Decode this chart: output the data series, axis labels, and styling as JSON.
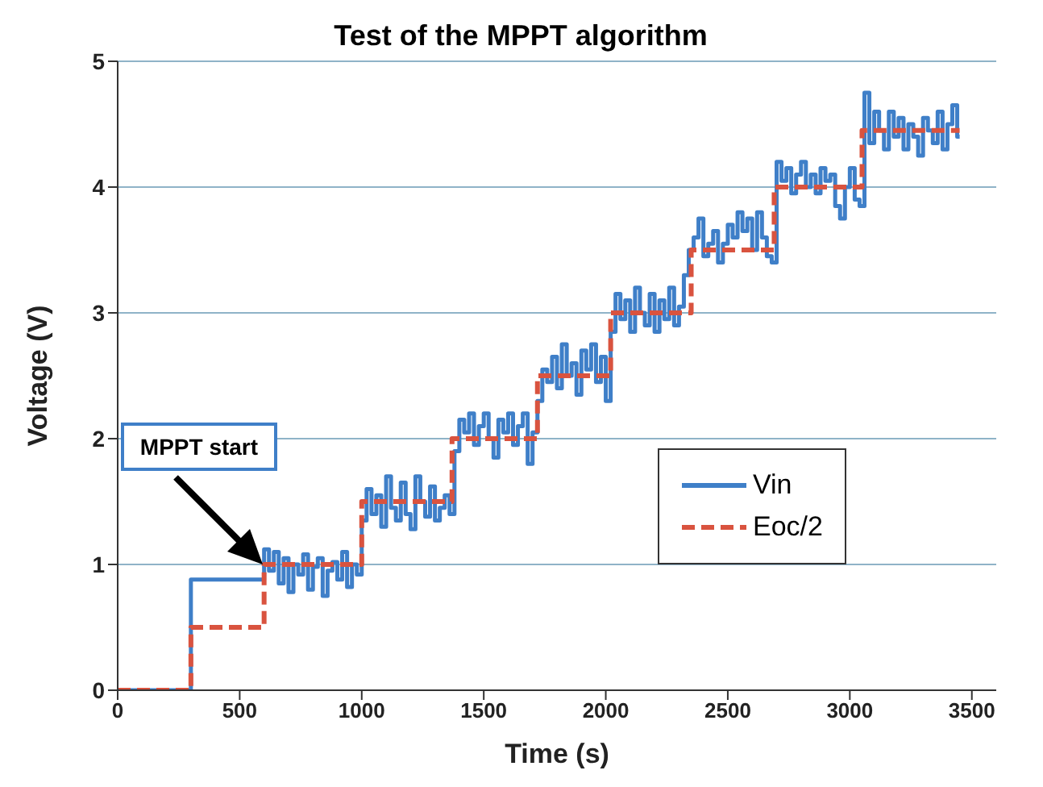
{
  "chart_data": {
    "type": "step",
    "title": "Test of the MPPT algorithm",
    "xlabel": "Time (s)",
    "ylabel": "Voltage (V)",
    "xlim": [
      0,
      3600
    ],
    "xticks": [
      0,
      500,
      1000,
      1500,
      2000,
      2500,
      3000,
      3500
    ],
    "ylim": [
      0,
      5
    ],
    "yticks": [
      0,
      1,
      2,
      3,
      4,
      5
    ],
    "grid": "y",
    "legend": "right",
    "marker": "none",
    "annotations": [
      "MPPT start"
    ],
    "series": [
      {
        "name": "Vin",
        "color": "#3f7fc8",
        "line_style": "solid",
        "x": [
          0,
          300,
          600,
          620,
          640,
          660,
          680,
          700,
          720,
          740,
          760,
          780,
          800,
          820,
          840,
          860,
          880,
          900,
          920,
          940,
          960,
          980,
          1000,
          1020,
          1040,
          1060,
          1080,
          1100,
          1120,
          1140,
          1160,
          1180,
          1200,
          1220,
          1240,
          1260,
          1280,
          1300,
          1320,
          1340,
          1360,
          1380,
          1400,
          1420,
          1440,
          1460,
          1480,
          1500,
          1520,
          1540,
          1560,
          1580,
          1600,
          1620,
          1640,
          1660,
          1680,
          1700,
          1720,
          1740,
          1760,
          1780,
          1800,
          1820,
          1840,
          1860,
          1880,
          1900,
          1920,
          1940,
          1960,
          1980,
          2000,
          2020,
          2040,
          2060,
          2080,
          2100,
          2120,
          2140,
          2160,
          2180,
          2200,
          2220,
          2240,
          2260,
          2280,
          2300,
          2320,
          2340,
          2360,
          2380,
          2400,
          2420,
          2440,
          2460,
          2480,
          2500,
          2520,
          2540,
          2560,
          2580,
          2600,
          2620,
          2640,
          2660,
          2680,
          2700,
          2720,
          2740,
          2760,
          2780,
          2800,
          2820,
          2840,
          2860,
          2880,
          2900,
          2920,
          2940,
          2960,
          2980,
          3000,
          3020,
          3040,
          3060,
          3080,
          3100,
          3120,
          3140,
          3160,
          3180,
          3200,
          3220,
          3240,
          3260,
          3280,
          3300,
          3320,
          3340,
          3360,
          3380,
          3400,
          3420,
          3440,
          3450
        ],
        "values": [
          0,
          0.88,
          1.12,
          0.95,
          1.1,
          0.85,
          1.05,
          0.78,
          1.0,
          0.92,
          1.08,
          0.8,
          0.98,
          1.05,
          0.75,
          0.95,
          1.02,
          0.88,
          1.1,
          0.82,
          1.0,
          0.92,
          1.35,
          1.6,
          1.4,
          1.55,
          1.3,
          1.7,
          1.45,
          1.35,
          1.65,
          1.4,
          1.28,
          1.7,
          1.5,
          1.38,
          1.62,
          1.35,
          1.45,
          1.55,
          1.4,
          1.9,
          2.15,
          2.05,
          2.2,
          1.95,
          2.1,
          2.2,
          2.0,
          1.85,
          2.15,
          2.05,
          2.2,
          1.95,
          2.1,
          2.2,
          1.8,
          2.05,
          2.3,
          2.55,
          2.45,
          2.65,
          2.4,
          2.75,
          2.5,
          2.6,
          2.35,
          2.7,
          2.55,
          2.75,
          2.45,
          2.65,
          2.3,
          2.85,
          3.15,
          2.95,
          3.1,
          2.85,
          3.2,
          3.0,
          2.9,
          3.15,
          2.85,
          3.1,
          2.95,
          3.2,
          2.9,
          3.05,
          3.3,
          3.5,
          3.6,
          3.75,
          3.45,
          3.55,
          3.65,
          3.4,
          3.55,
          3.7,
          3.6,
          3.8,
          3.65,
          3.75,
          3.5,
          3.8,
          3.6,
          3.45,
          3.4,
          4.2,
          4.05,
          4.15,
          3.95,
          4.1,
          4.2,
          4.0,
          4.1,
          3.95,
          4.15,
          4.05,
          4.1,
          3.85,
          3.75,
          4.0,
          4.15,
          3.9,
          3.85,
          4.75,
          4.35,
          4.6,
          4.45,
          4.3,
          4.6,
          4.4,
          4.55,
          4.3,
          4.5,
          4.4,
          4.25,
          4.55,
          4.45,
          4.35,
          4.6,
          4.3,
          4.5,
          4.65,
          4.4,
          4.4
        ]
      },
      {
        "name": "Eoc/2",
        "color": "#d9533f",
        "line_style": "dashed",
        "x": [
          0,
          300,
          600,
          1000,
          1370,
          1720,
          2020,
          2350,
          2690,
          3050,
          3450
        ],
        "values": [
          0,
          0.5,
          1.0,
          1.5,
          2.0,
          2.5,
          3.0,
          3.5,
          4.0,
          4.45,
          4.45
        ]
      }
    ]
  }
}
